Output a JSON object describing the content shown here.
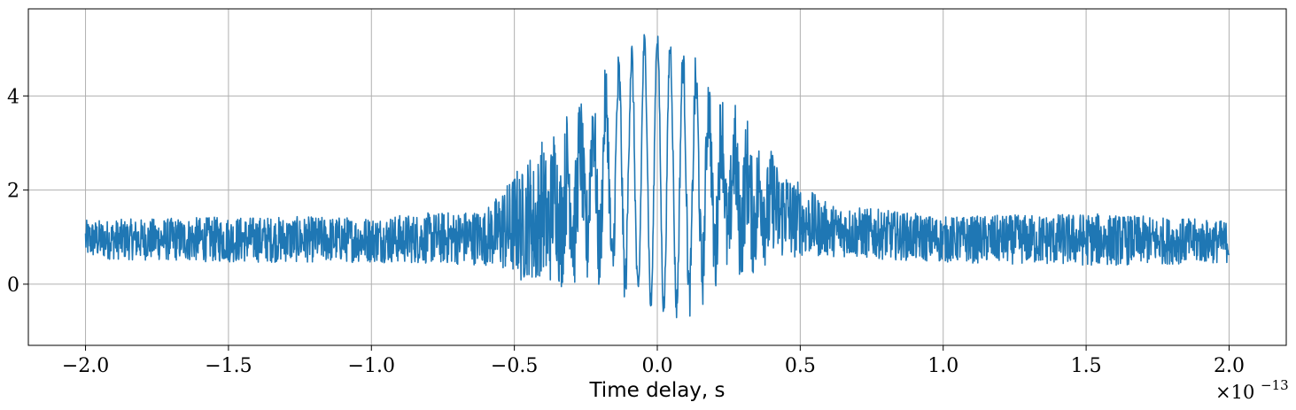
{
  "chart_data": {
    "type": "line",
    "title": "",
    "xlabel": "Time delay, s",
    "ylabel": "",
    "x_scale_offset": {
      "prefix": "×10",
      "exponent": "−13"
    },
    "xlim": [
      -2.2,
      2.2
    ],
    "ylim": [
      -1.3,
      5.85
    ],
    "xticks": [
      -2.0,
      -1.5,
      -1.0,
      -0.5,
      0.0,
      0.5,
      1.0,
      1.5,
      2.0
    ],
    "xtick_labels": [
      "−2.0",
      "−1.5",
      "−1.0",
      "−0.5",
      "0.0",
      "0.5",
      "1.0",
      "1.5",
      "2.0"
    ],
    "yticks": [
      0,
      2,
      4
    ],
    "ytick_labels": [
      "0",
      "2",
      "4"
    ],
    "grid": true,
    "legend": "none",
    "color": "#1f77b4",
    "series": [
      {
        "description_of_shape": "interferogram: noisy baseline near 1 with oscillating fringes whose envelope peaks near x=0",
        "envelope": {
          "x": [
            -2.0,
            -1.5,
            -1.0,
            -0.6,
            -0.5,
            -0.4,
            -0.3,
            -0.2,
            -0.1,
            0.0,
            0.1,
            0.2,
            0.3,
            0.4,
            0.5,
            0.6,
            1.0,
            1.5,
            2.0
          ],
          "upper": [
            1.5,
            1.6,
            1.6,
            1.8,
            2.8,
            3.6,
            4.3,
            4.9,
            5.3,
            5.5,
            5.2,
            4.8,
            4.1,
            3.3,
            2.4,
            1.9,
            1.6,
            1.7,
            1.5
          ],
          "lower": [
            0.4,
            0.3,
            0.3,
            0.2,
            -0.3,
            -0.7,
            -0.6,
            -0.5,
            -0.6,
            -0.7,
            -0.9,
            -0.6,
            -0.4,
            0.0,
            0.3,
            0.4,
            0.3,
            0.2,
            0.3
          ]
        },
        "baseline": 1.0,
        "fringe_period": 0.045,
        "n_points": 3000,
        "x_range": [
          -2.0,
          2.0
        ]
      }
    ]
  }
}
